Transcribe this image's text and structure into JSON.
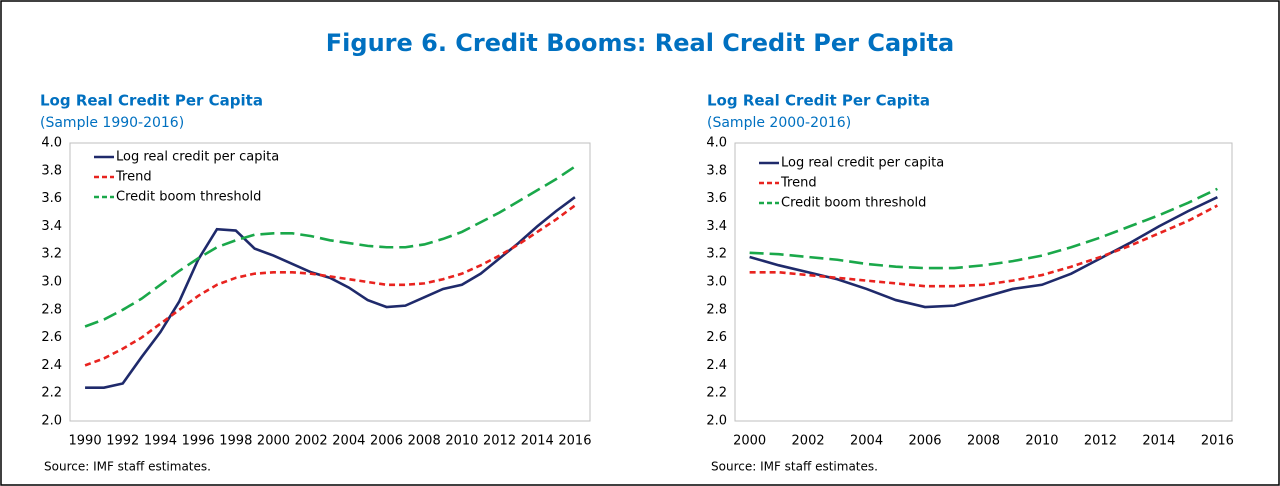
{
  "title": "Figure 6. Credit Booms: Real Credit Per Capita",
  "chart_data": [
    {
      "type": "line",
      "title": "Log Real Credit Per Capita",
      "subtitle": "(Sample 1990-2016)",
      "source": "Source: IMF staff estimates.",
      "x": [
        1990,
        1991,
        1992,
        1993,
        1994,
        1995,
        1996,
        1997,
        1998,
        1999,
        2000,
        2001,
        2002,
        2003,
        2004,
        2005,
        2006,
        2007,
        2008,
        2009,
        2010,
        2011,
        2012,
        2013,
        2014,
        2015,
        2016
      ],
      "series": [
        {
          "name": "Log real credit per capita",
          "color": "#1f2a6b",
          "dash": "solid",
          "values": [
            2.24,
            2.24,
            2.27,
            2.46,
            2.64,
            2.86,
            3.16,
            3.38,
            3.37,
            3.24,
            3.19,
            3.13,
            3.07,
            3.03,
            2.96,
            2.87,
            2.82,
            2.83,
            2.89,
            2.95,
            2.98,
            3.06,
            3.17,
            3.28,
            3.4,
            3.51,
            3.61
          ]
        },
        {
          "name": "Trend",
          "color": "#e8231f",
          "dash": "short",
          "values": [
            2.4,
            2.45,
            2.52,
            2.6,
            2.7,
            2.8,
            2.9,
            2.98,
            3.03,
            3.06,
            3.07,
            3.07,
            3.06,
            3.04,
            3.02,
            3.0,
            2.98,
            2.98,
            2.99,
            3.02,
            3.06,
            3.12,
            3.19,
            3.27,
            3.36,
            3.45,
            3.55
          ]
        },
        {
          "name": "Credit boom threshold",
          "color": "#1aa84a",
          "dash": "long",
          "values": [
            2.68,
            2.73,
            2.8,
            2.88,
            2.98,
            3.08,
            3.17,
            3.25,
            3.3,
            3.34,
            3.35,
            3.35,
            3.33,
            3.3,
            3.28,
            3.26,
            3.25,
            3.25,
            3.27,
            3.31,
            3.36,
            3.43,
            3.5,
            3.58,
            3.66,
            3.74,
            3.83
          ]
        }
      ],
      "xlim": [
        1989.2,
        2016.8
      ],
      "xticks": [
        1990,
        1992,
        1994,
        1996,
        1998,
        2000,
        2002,
        2004,
        2006,
        2008,
        2010,
        2012,
        2014,
        2016
      ],
      "ylim": [
        2,
        4
      ],
      "yticks": [
        {
          "value": 2,
          "label": "2.0"
        },
        2.2,
        2.4,
        2.6,
        2.8,
        {
          "value": 3,
          "label": "3.0"
        },
        3.2,
        3.4,
        3.6,
        3.8,
        {
          "value": 4,
          "label": "4.0"
        }
      ],
      "legend": "upper left",
      "grid": false
    },
    {
      "type": "line",
      "title": "Log Real Credit Per Capita",
      "subtitle": "(Sample 2000-2016)",
      "source": "Source: IMF staff estimates.",
      "x": [
        2000,
        2001,
        2002,
        2003,
        2004,
        2005,
        2006,
        2007,
        2008,
        2009,
        2010,
        2011,
        2012,
        2013,
        2014,
        2015,
        2016
      ],
      "series": [
        {
          "name": "Log real credit per capita",
          "color": "#1f2a6b",
          "dash": "solid",
          "values": [
            3.18,
            3.12,
            3.07,
            3.02,
            2.95,
            2.87,
            2.82,
            2.83,
            2.89,
            2.95,
            2.98,
            3.06,
            3.17,
            3.28,
            3.4,
            3.51,
            3.61
          ]
        },
        {
          "name": "Trend",
          "color": "#e8231f",
          "dash": "short",
          "values": [
            3.07,
            3.07,
            3.05,
            3.03,
            3.01,
            2.99,
            2.97,
            2.97,
            2.98,
            3.01,
            3.05,
            3.11,
            3.18,
            3.26,
            3.35,
            3.44,
            3.55
          ]
        },
        {
          "name": "Credit boom threshold",
          "color": "#1aa84a",
          "dash": "long",
          "values": [
            3.21,
            3.2,
            3.18,
            3.16,
            3.13,
            3.11,
            3.1,
            3.1,
            3.12,
            3.15,
            3.19,
            3.25,
            3.32,
            3.4,
            3.48,
            3.57,
            3.67
          ]
        }
      ],
      "xlim": [
        1999.5,
        2016.5
      ],
      "xticks": [
        2000,
        2002,
        2004,
        2006,
        2008,
        2010,
        2012,
        2014,
        2016
      ],
      "ylim": [
        2,
        4
      ],
      "yticks": [
        {
          "value": 2,
          "label": "2.0"
        },
        2.2,
        2.4,
        2.6,
        2.8,
        {
          "value": 3,
          "label": "3.0"
        },
        3.2,
        3.4,
        3.6,
        3.8,
        {
          "value": 4,
          "label": "4.0"
        }
      ],
      "legend": "upper left",
      "grid": false
    }
  ]
}
